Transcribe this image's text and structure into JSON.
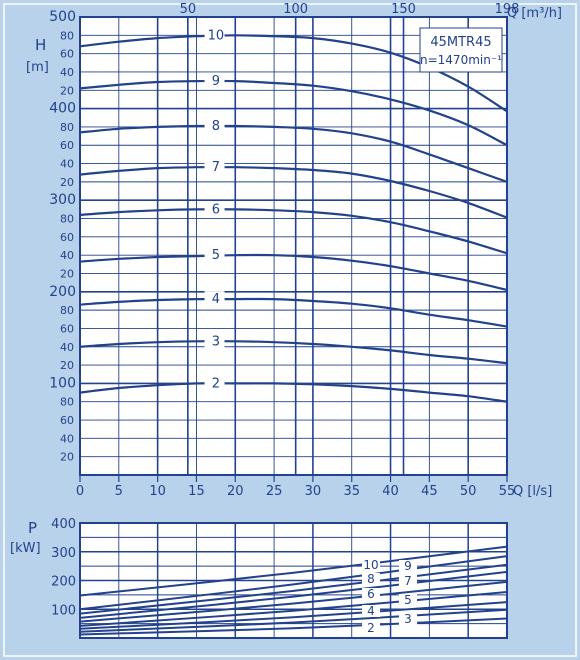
{
  "colors": {
    "background": "#b9d2ec",
    "ink": "#23428c",
    "paper": "#ffffff"
  },
  "chart_data": [
    {
      "type": "line",
      "ylabel": "H",
      "ylabel_unit": "[m]",
      "xlabel": "Q [l/s]",
      "x2label": "Q [m³/h]",
      "model_label": "45MTR45",
      "speed_label": "n=1470min⁻¹",
      "xlim": [
        0,
        55
      ],
      "ylim": [
        0,
        500
      ],
      "x_ticks": [
        0,
        5,
        10,
        15,
        20,
        25,
        30,
        35,
        40,
        45,
        50,
        55
      ],
      "x2_ticks": [
        {
          "label": "50",
          "q_ls": 13.89
        },
        {
          "label": "100",
          "q_ls": 27.78
        },
        {
          "label": "150",
          "q_ls": 41.67
        },
        {
          "label": "198",
          "q_ls": 55
        }
      ],
      "y_tick_labels": [
        {
          "v": 20,
          "t": "20"
        },
        {
          "v": 40,
          "t": "40"
        },
        {
          "v": 60,
          "t": "60"
        },
        {
          "v": 80,
          "t": "80"
        },
        {
          "v": 100,
          "t": "100"
        },
        {
          "v": 120,
          "t": "20"
        },
        {
          "v": 140,
          "t": "40"
        },
        {
          "v": 160,
          "t": "60"
        },
        {
          "v": 180,
          "t": "80"
        },
        {
          "v": 200,
          "t": "200"
        },
        {
          "v": 220,
          "t": "20"
        },
        {
          "v": 240,
          "t": "40"
        },
        {
          "v": 260,
          "t": "60"
        },
        {
          "v": 280,
          "t": "80"
        },
        {
          "v": 300,
          "t": "300"
        },
        {
          "v": 320,
          "t": "20"
        },
        {
          "v": 340,
          "t": "40"
        },
        {
          "v": 360,
          "t": "60"
        },
        {
          "v": 380,
          "t": "80"
        },
        {
          "v": 400,
          "t": "400"
        },
        {
          "v": 420,
          "t": "20"
        },
        {
          "v": 440,
          "t": "40"
        },
        {
          "v": 460,
          "t": "60"
        },
        {
          "v": 480,
          "t": "80"
        },
        {
          "v": 500,
          "t": "500"
        }
      ],
      "x": [
        0,
        5,
        10,
        15,
        20,
        25,
        30,
        35,
        40,
        45,
        50,
        55
      ],
      "series": [
        {
          "name": "2",
          "values": [
            90,
            95,
            98,
            100,
            100,
            100,
            99,
            97,
            94,
            90,
            86,
            80
          ]
        },
        {
          "name": "3",
          "values": [
            140,
            143,
            145,
            146,
            146,
            145,
            143,
            140,
            136,
            131,
            127,
            122
          ]
        },
        {
          "name": "4",
          "values": [
            186,
            189,
            191,
            192,
            192,
            192,
            190,
            187,
            182,
            175,
            169,
            162
          ]
        },
        {
          "name": "5",
          "values": [
            233,
            236,
            238,
            239,
            240,
            240,
            238,
            234,
            228,
            220,
            212,
            202
          ]
        },
        {
          "name": "6",
          "values": [
            284,
            287,
            289,
            290,
            290,
            289,
            287,
            283,
            276,
            266,
            255,
            242
          ]
        },
        {
          "name": "7",
          "values": [
            328,
            332,
            335,
            336,
            336,
            335,
            333,
            329,
            321,
            310,
            297,
            281
          ]
        },
        {
          "name": "8",
          "values": [
            374,
            378,
            380,
            381,
            381,
            380,
            378,
            373,
            364,
            350,
            335,
            320
          ]
        },
        {
          "name": "9",
          "values": [
            422,
            426,
            429,
            430,
            430,
            428,
            425,
            419,
            410,
            398,
            382,
            360
          ]
        },
        {
          "name": "10",
          "values": [
            468,
            473,
            477,
            479,
            480,
            479,
            477,
            471,
            461,
            445,
            424,
            397
          ]
        }
      ],
      "grid": true
    },
    {
      "type": "line",
      "ylabel": "P",
      "ylabel_unit": "[kW]",
      "xlim": [
        0,
        55
      ],
      "ylim": [
        0,
        400
      ],
      "y_ticks": [
        100,
        200,
        300,
        400
      ],
      "x": [
        0,
        55
      ],
      "series": [
        {
          "name": "2",
          "values": [
            12,
            68
          ]
        },
        {
          "name": "3",
          "values": [
            22,
            98
          ]
        },
        {
          "name": "4",
          "values": [
            32,
            125
          ]
        },
        {
          "name": "5",
          "values": [
            42,
            160
          ]
        },
        {
          "name": "6",
          "values": [
            57,
            195
          ]
        },
        {
          "name": "7",
          "values": [
            70,
            230
          ]
        },
        {
          "name": "8",
          "values": [
            85,
            255
          ]
        },
        {
          "name": "9",
          "values": [
            100,
            285
          ]
        },
        {
          "name": "10",
          "values": [
            148,
            318
          ]
        }
      ],
      "grid": true
    }
  ]
}
